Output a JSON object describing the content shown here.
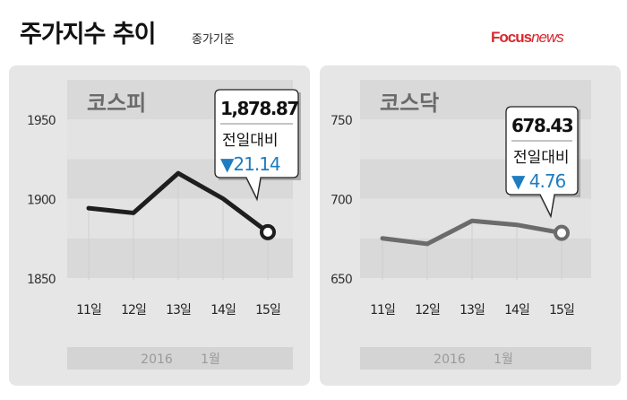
{
  "header": {
    "title": "주가지수 추이",
    "subtitle": "종가기준",
    "logo": "Focusnews",
    "logo_parts": [
      "Focus",
      "news"
    ]
  },
  "colors": {
    "kospi_line": "#1e1e1e",
    "kosdaq_line": "#6b6b6b",
    "down": "#1f7cc1",
    "logo": "#d7282f"
  },
  "chart_data": [
    {
      "type": "line",
      "title": "코스피",
      "categories": [
        "11일",
        "12일",
        "13일",
        "14일",
        "15일"
      ],
      "values": [
        1894,
        1891,
        1916,
        1900,
        1878.87
      ],
      "ylim": [
        1850,
        1950
      ],
      "yticks": [
        "1950",
        "1900",
        "1850"
      ],
      "xlabel_year": "2016",
      "xlabel_month": "1월",
      "callout": {
        "value": "1,878.87",
        "label": "전일대비",
        "change": "▼21.14"
      }
    },
    {
      "type": "line",
      "title": "코스닥",
      "categories": [
        "11일",
        "12일",
        "13일",
        "14일",
        "15일"
      ],
      "values": [
        675,
        671.5,
        686,
        683.5,
        678.43
      ],
      "ylim": [
        650,
        750
      ],
      "yticks": [
        "750",
        "700",
        "650"
      ],
      "xlabel_year": "2016",
      "xlabel_month": "1월",
      "callout": {
        "value": "678.43",
        "label": "전일대비",
        "change": "▼ 4.76"
      }
    }
  ]
}
